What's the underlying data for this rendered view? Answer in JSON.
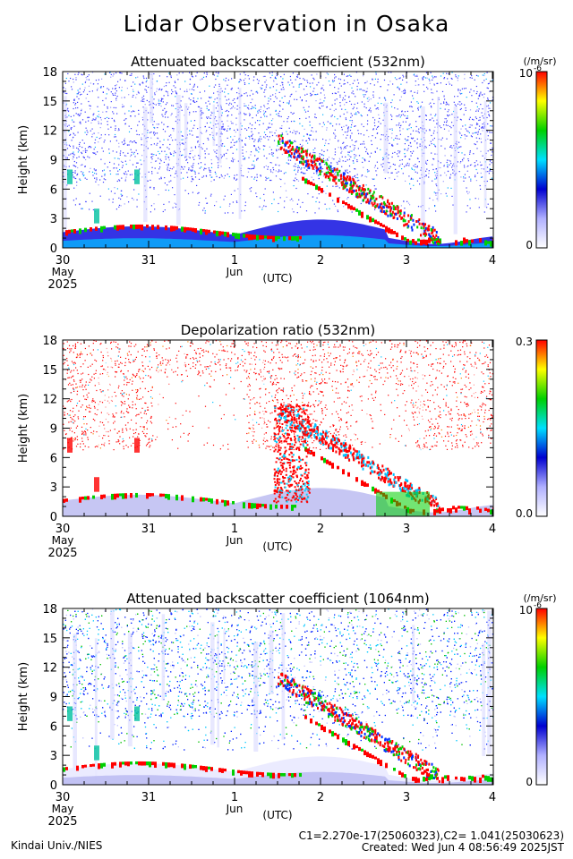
{
  "page_title": "Lidar Observation in Osaka",
  "footer": {
    "credit": "Kindai Univ./NIES",
    "constants": "C1=2.270e-17(25060323),C2= 1.041(25030623)",
    "created": "Created: Wed Jun  4 08:56:49 2025JST"
  },
  "chart_data": [
    {
      "type": "heatmap",
      "title": "Attenuated backscatter coefficient (532nm)",
      "xlabel": "(UTC)",
      "ylabel": "Height (km)",
      "x_ticks": [
        "30",
        "31",
        "1",
        "2",
        "3",
        "4"
      ],
      "x_month_labels": [
        "May",
        "Jun"
      ],
      "x_year_label": "2025",
      "xlim": [
        "2025-05-30 00:00",
        "2025-06-04 00:00"
      ],
      "ylim": [
        0,
        18
      ],
      "y_ticks": [
        0,
        3,
        6,
        9,
        12,
        15,
        18
      ],
      "colorbar": {
        "min_label": "0",
        "max_label": "10",
        "max_exponent": "-6",
        "unit": "(/m/sr)"
      },
      "colors": [
        "#ffffff",
        "#b0b0ff",
        "#0000d0",
        "#00e0ff",
        "#00d000",
        "#ffff00",
        "#ff0000"
      ]
    },
    {
      "type": "heatmap",
      "title": "Depolarization ratio (532nm)",
      "xlabel": "(UTC)",
      "ylabel": "Height (km)",
      "x_ticks": [
        "30",
        "31",
        "1",
        "2",
        "3",
        "4"
      ],
      "x_month_labels": [
        "May",
        "Jun"
      ],
      "x_year_label": "2025",
      "xlim": [
        "2025-05-30 00:00",
        "2025-06-04 00:00"
      ],
      "ylim": [
        0,
        18
      ],
      "y_ticks": [
        0,
        3,
        6,
        9,
        12,
        15,
        18
      ],
      "colorbar": {
        "min_label": "0.0",
        "max_label": "0.3"
      },
      "colors": [
        "#ffffff",
        "#b0b0ff",
        "#0000d0",
        "#00e0ff",
        "#00d000",
        "#ffff00",
        "#ff0000"
      ]
    },
    {
      "type": "heatmap",
      "title": "Attenuated backscatter coefficient (1064nm)",
      "xlabel": "(UTC)",
      "ylabel": "Height (km)",
      "x_ticks": [
        "30",
        "31",
        "1",
        "2",
        "3",
        "4"
      ],
      "x_month_labels": [
        "May",
        "Jun"
      ],
      "x_year_label": "2025",
      "xlim": [
        "2025-05-30 00:00",
        "2025-06-04 00:00"
      ],
      "ylim": [
        0,
        18
      ],
      "y_ticks": [
        0,
        3,
        6,
        9,
        12,
        15,
        18
      ],
      "colorbar": {
        "min_label": "0",
        "max_label": "10",
        "max_exponent": "-6",
        "unit": "(/m/sr)"
      },
      "colors": [
        "#ffffff",
        "#b0b0ff",
        "#0000d0",
        "#00e0ff",
        "#00d000",
        "#ffff00",
        "#ff0000"
      ]
    }
  ]
}
